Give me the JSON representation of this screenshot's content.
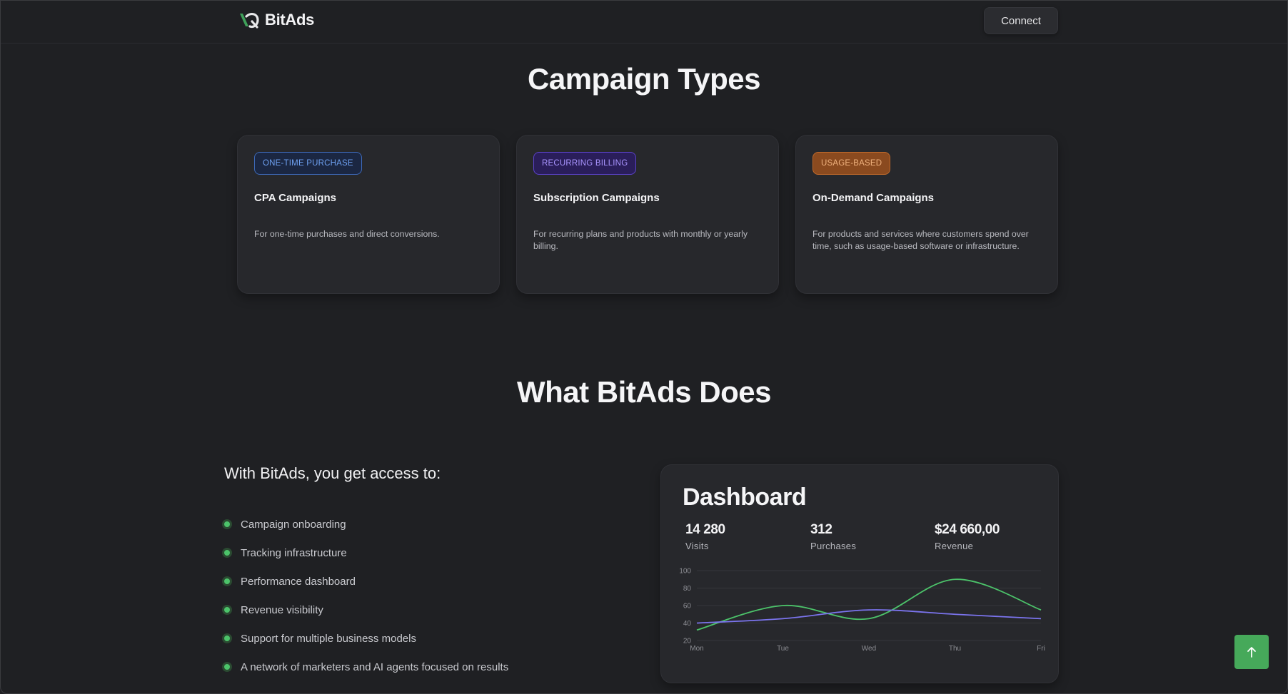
{
  "brand": {
    "name": "BitAds",
    "logo_icon": "bitads-logo-icon"
  },
  "header": {
    "connect_label": "Connect"
  },
  "campaign_types": {
    "title": "Campaign Types",
    "cards": [
      {
        "badge": "ONE-TIME PURCHASE",
        "title": "CPA Campaigns",
        "description": "For one-time purchases and direct conversions.",
        "badge_color": "#6ea0f0"
      },
      {
        "badge": "RECURRING BILLING",
        "title": "Subscription Campaigns",
        "description": "For recurring plans and products with monthly or yearly billing.",
        "badge_color": "#a995ff"
      },
      {
        "badge": "USAGE-BASED",
        "title": "On-Demand Campaigns",
        "description": "For products and services where customers spend over time, such as usage-based software or infrastructure.",
        "badge_color": "#f0b27e"
      }
    ]
  },
  "what_bitads_does": {
    "title": "What BitAds Does",
    "intro": "With BitAds, you get access to:",
    "features": [
      "Campaign onboarding",
      "Tracking infrastructure",
      "Performance dashboard",
      "Revenue visibility",
      "Support for multiple business models",
      "A network of marketers and AI agents focused on results"
    ],
    "bullet_color": "#4cc36a"
  },
  "dashboard": {
    "title": "Dashboard",
    "stats": [
      {
        "value": "14 280",
        "label": "Visits"
      },
      {
        "value": "312",
        "label": "Purchases"
      },
      {
        "value": "$24 660,00",
        "label": "Revenue"
      }
    ]
  },
  "chart_data": {
    "type": "line",
    "categories": [
      "Mon",
      "Tue",
      "Wed",
      "Thu",
      "Fri"
    ],
    "ylim": [
      20,
      100
    ],
    "yticks": [
      100,
      80,
      60,
      40,
      20
    ],
    "grid": true,
    "series": [
      {
        "values": [
          32,
          60,
          45,
          90,
          55
        ],
        "color": "#4cc36a"
      },
      {
        "values": [
          40,
          45,
          55,
          50,
          45
        ],
        "color": "#7b74ee"
      }
    ]
  },
  "scroll_top": {
    "icon": "arrow-up-icon",
    "color": "#46a95a"
  }
}
